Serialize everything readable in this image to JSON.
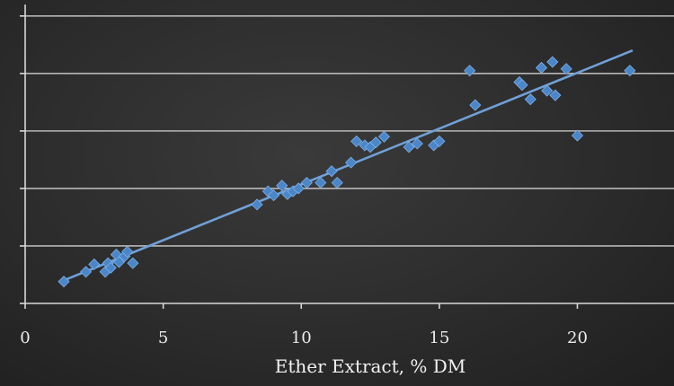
{
  "chart_data": {
    "type": "scatter",
    "title": "",
    "xlabel": "Ether Extract, % DM",
    "ylabel": "",
    "xlim": [
      0,
      23.5
    ],
    "ylim": [
      0,
      5.2
    ],
    "x_ticks": [
      "0",
      "5",
      "10",
      "15",
      "20"
    ],
    "x_tick_values": [
      0,
      5,
      10,
      15,
      20
    ],
    "y_gridlines": [
      0,
      1,
      2,
      3,
      4,
      5
    ],
    "grid": true,
    "marker": "diamond",
    "colors": {
      "points": "#4a86c8",
      "trend": "#6fa0d6"
    },
    "trendline": {
      "x": [
        1.5,
        22.0
      ],
      "y": [
        0.42,
        4.4
      ]
    },
    "series": [
      {
        "points": [
          [
            1.4,
            0.38
          ],
          [
            2.2,
            0.55
          ],
          [
            2.5,
            0.68
          ],
          [
            2.9,
            0.55
          ],
          [
            3.0,
            0.7
          ],
          [
            3.1,
            0.62
          ],
          [
            3.3,
            0.85
          ],
          [
            3.4,
            0.72
          ],
          [
            3.6,
            0.82
          ],
          [
            3.7,
            0.9
          ],
          [
            3.9,
            0.7
          ],
          [
            8.4,
            1.72
          ],
          [
            8.8,
            1.95
          ],
          [
            9.0,
            1.88
          ],
          [
            9.3,
            2.05
          ],
          [
            9.5,
            1.9
          ],
          [
            9.7,
            1.95
          ],
          [
            9.9,
            2.0
          ],
          [
            10.2,
            2.1
          ],
          [
            10.7,
            2.1
          ],
          [
            11.1,
            2.3
          ],
          [
            11.3,
            2.1
          ],
          [
            11.8,
            2.45
          ],
          [
            12.0,
            2.82
          ],
          [
            12.3,
            2.75
          ],
          [
            12.5,
            2.72
          ],
          [
            12.7,
            2.8
          ],
          [
            13.0,
            2.9
          ],
          [
            13.9,
            2.72
          ],
          [
            14.2,
            2.78
          ],
          [
            14.8,
            2.75
          ],
          [
            15.0,
            2.82
          ],
          [
            16.1,
            4.05
          ],
          [
            16.3,
            3.45
          ],
          [
            17.9,
            3.85
          ],
          [
            18.0,
            3.8
          ],
          [
            18.3,
            3.55
          ],
          [
            18.7,
            4.1
          ],
          [
            18.9,
            3.7
          ],
          [
            19.1,
            4.2
          ],
          [
            19.2,
            3.62
          ],
          [
            19.6,
            4.08
          ],
          [
            20.0,
            2.92
          ],
          [
            21.9,
            4.05
          ]
        ]
      }
    ]
  }
}
